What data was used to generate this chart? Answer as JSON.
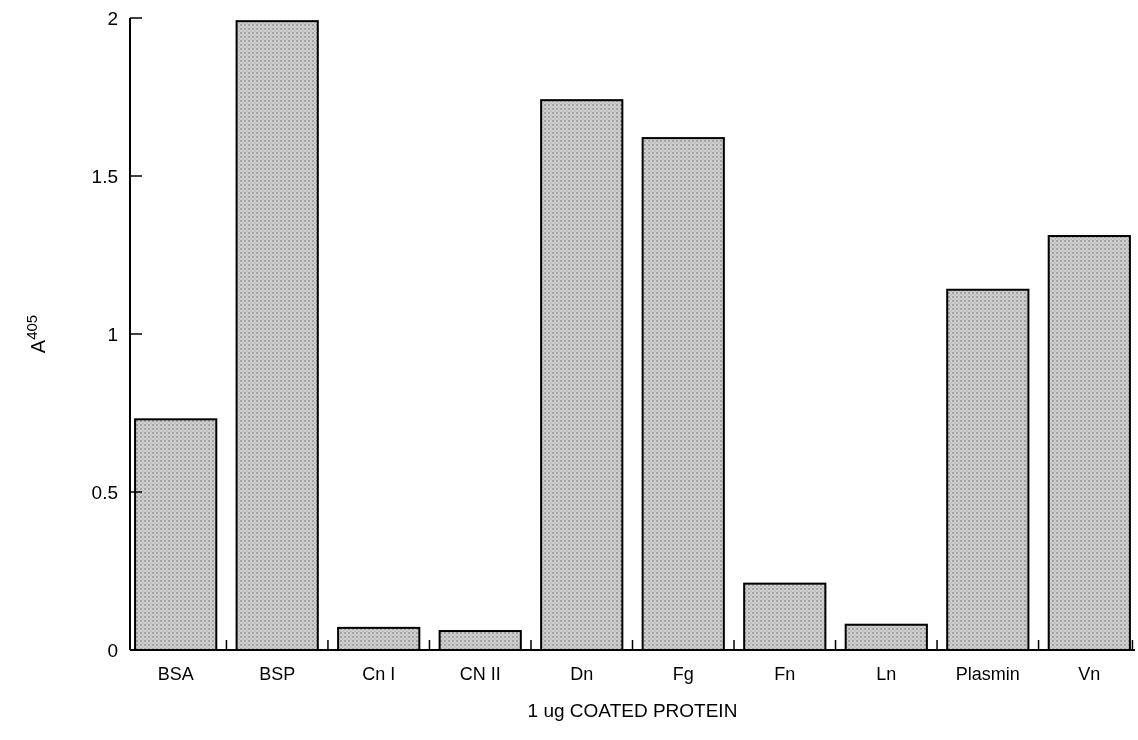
{
  "chart_data": {
    "type": "bar",
    "xlabel": "1 ug COATED PROTEIN",
    "ylabel": "A$^{405}$",
    "categories": [
      "BSA",
      "BSP",
      "Cn I",
      "CN II",
      "Dn",
      "Fg",
      "Fn",
      "Ln",
      "Plasmin",
      "Vn"
    ],
    "values": [
      0.73,
      1.99,
      0.07,
      0.06,
      1.74,
      1.62,
      0.21,
      0.08,
      1.14,
      1.31
    ],
    "color": "#cfcfcf",
    "ylim": [
      0,
      2
    ],
    "yticks": [
      0,
      0.5,
      1,
      1.5,
      2
    ],
    "grid": false
  }
}
